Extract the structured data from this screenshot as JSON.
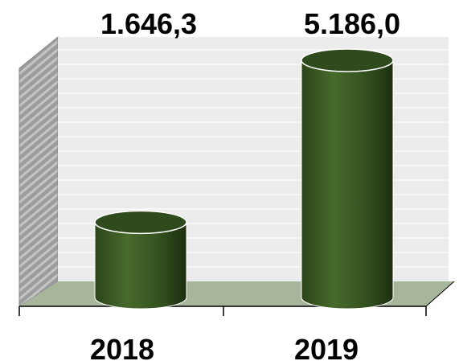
{
  "chart_data": {
    "type": "bar",
    "style": "3d-cylinder",
    "categories": [
      "2018",
      "2019"
    ],
    "values": [
      1646.3,
      5186.0
    ],
    "data_labels": [
      "1.646,3",
      "5.186,0"
    ],
    "title": "",
    "xlabel": "",
    "ylabel": "",
    "grid": true,
    "colors": {
      "bar": "#3b5a24",
      "bar_dark": "#1f3310",
      "bar_top": "#2f4a1c",
      "back_wall": "#ececec",
      "side_wall": "#a9a9a9",
      "floor": "#a7b59a",
      "grid": "#ffffff"
    }
  }
}
